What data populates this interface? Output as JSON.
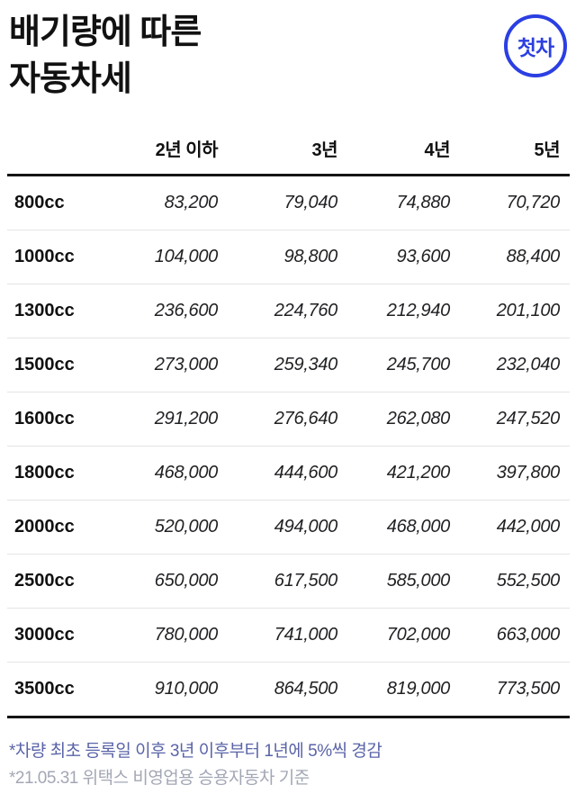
{
  "title": {
    "line1": "배기량에 따른",
    "line2": "자동차세"
  },
  "badge": {
    "label": "첫차",
    "color": "#2b3fe2"
  },
  "chart_data": {
    "type": "table",
    "title": "배기량에 따른 자동차세",
    "columns": [
      "",
      "2년 이하",
      "3년",
      "4년",
      "5년"
    ],
    "rows": [
      {
        "label": "800cc",
        "values": [
          "83,200",
          "79,040",
          "74,880",
          "70,720"
        ]
      },
      {
        "label": "1000cc",
        "values": [
          "104,000",
          "98,800",
          "93,600",
          "88,400"
        ]
      },
      {
        "label": "1300cc",
        "values": [
          "236,600",
          "224,760",
          "212,940",
          "201,100"
        ]
      },
      {
        "label": "1500cc",
        "values": [
          "273,000",
          "259,340",
          "245,700",
          "232,040"
        ]
      },
      {
        "label": "1600cc",
        "values": [
          "291,200",
          "276,640",
          "262,080",
          "247,520"
        ]
      },
      {
        "label": "1800cc",
        "values": [
          "468,000",
          "444,600",
          "421,200",
          "397,800"
        ]
      },
      {
        "label": "2000cc",
        "values": [
          "520,000",
          "494,000",
          "468,000",
          "442,000"
        ]
      },
      {
        "label": "2500cc",
        "values": [
          "650,000",
          "617,500",
          "585,000",
          "552,500"
        ]
      },
      {
        "label": "3000cc",
        "values": [
          "780,000",
          "741,000",
          "702,000",
          "663,000"
        ]
      },
      {
        "label": "3500cc",
        "values": [
          "910,000",
          "864,500",
          "819,000",
          "773,500"
        ]
      }
    ]
  },
  "footnotes": [
    {
      "text": "*차량 최초 등록일 이후 3년 이후부터 1년에 5%씩 경감",
      "color": "#5a64a8"
    },
    {
      "text": "*21.05.31 위택스 비영업용 승용자동차 기준",
      "color": "#a3a7b5"
    }
  ]
}
